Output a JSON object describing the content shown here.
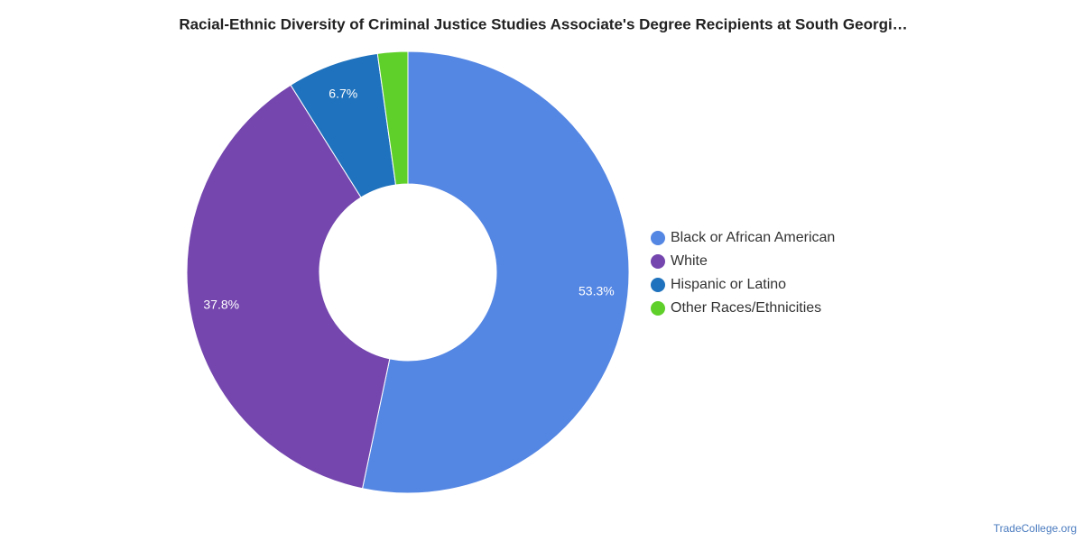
{
  "chart_data": {
    "type": "donut",
    "title": "Racial-Ethnic Diversity of Criminal Justice Studies Associate's Degree Recipients at South Georgi…",
    "categories": [
      "Black or African American",
      "White",
      "Hispanic or Latino",
      "Other Races/Ethnicities"
    ],
    "values": [
      53.3,
      37.8,
      6.7,
      2.2
    ],
    "value_labels": [
      "53.3%",
      "37.8%",
      "6.7%",
      null
    ],
    "colors": [
      "#5486e3",
      "#7446ae",
      "#1f72bd",
      "#5fcf2a"
    ],
    "legend": "right"
  },
  "footer": "TradeCollege.org"
}
